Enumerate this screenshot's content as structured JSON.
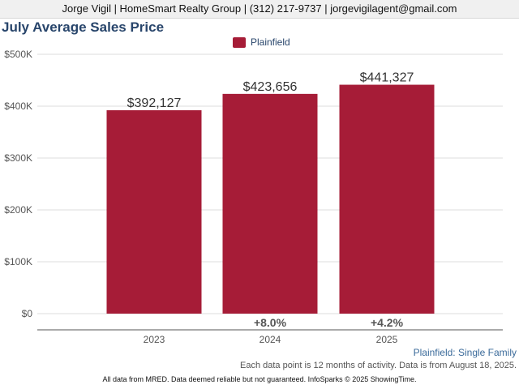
{
  "header": {
    "text": "Jorge Vigil | HomeSmart Realty Group | (312) 217-9737 | jorgevigilagent@gmail.com"
  },
  "chart_data": {
    "type": "bar",
    "title": "July Average Sales Price",
    "categories": [
      "2023",
      "2024",
      "2025"
    ],
    "series": [
      {
        "name": "Plainfield",
        "values": [
          392127,
          423656,
          441327
        ],
        "color": "#a61c37"
      }
    ],
    "data_labels": [
      "$392,127",
      "$423,656",
      "$441,327"
    ],
    "change_labels": [
      "",
      "+8.0%",
      "+4.2%"
    ],
    "yticks": [
      0,
      100000,
      200000,
      300000,
      400000,
      500000
    ],
    "ytick_labels": [
      "$0",
      "$100K",
      "$200K",
      "$300K",
      "$400K",
      "$500K"
    ],
    "ylim": [
      0,
      500000
    ],
    "xlabel": "",
    "ylabel": "",
    "grid": true,
    "legend_position": "top-center"
  },
  "subtitle": "Plainfield: Single Family",
  "note": "Each data point is 12 months of activity. Data is from August 18, 2025.",
  "footer": "All data from MRED. Data deemed reliable but not guaranteed. InfoSparks © 2025 ShowingTime."
}
